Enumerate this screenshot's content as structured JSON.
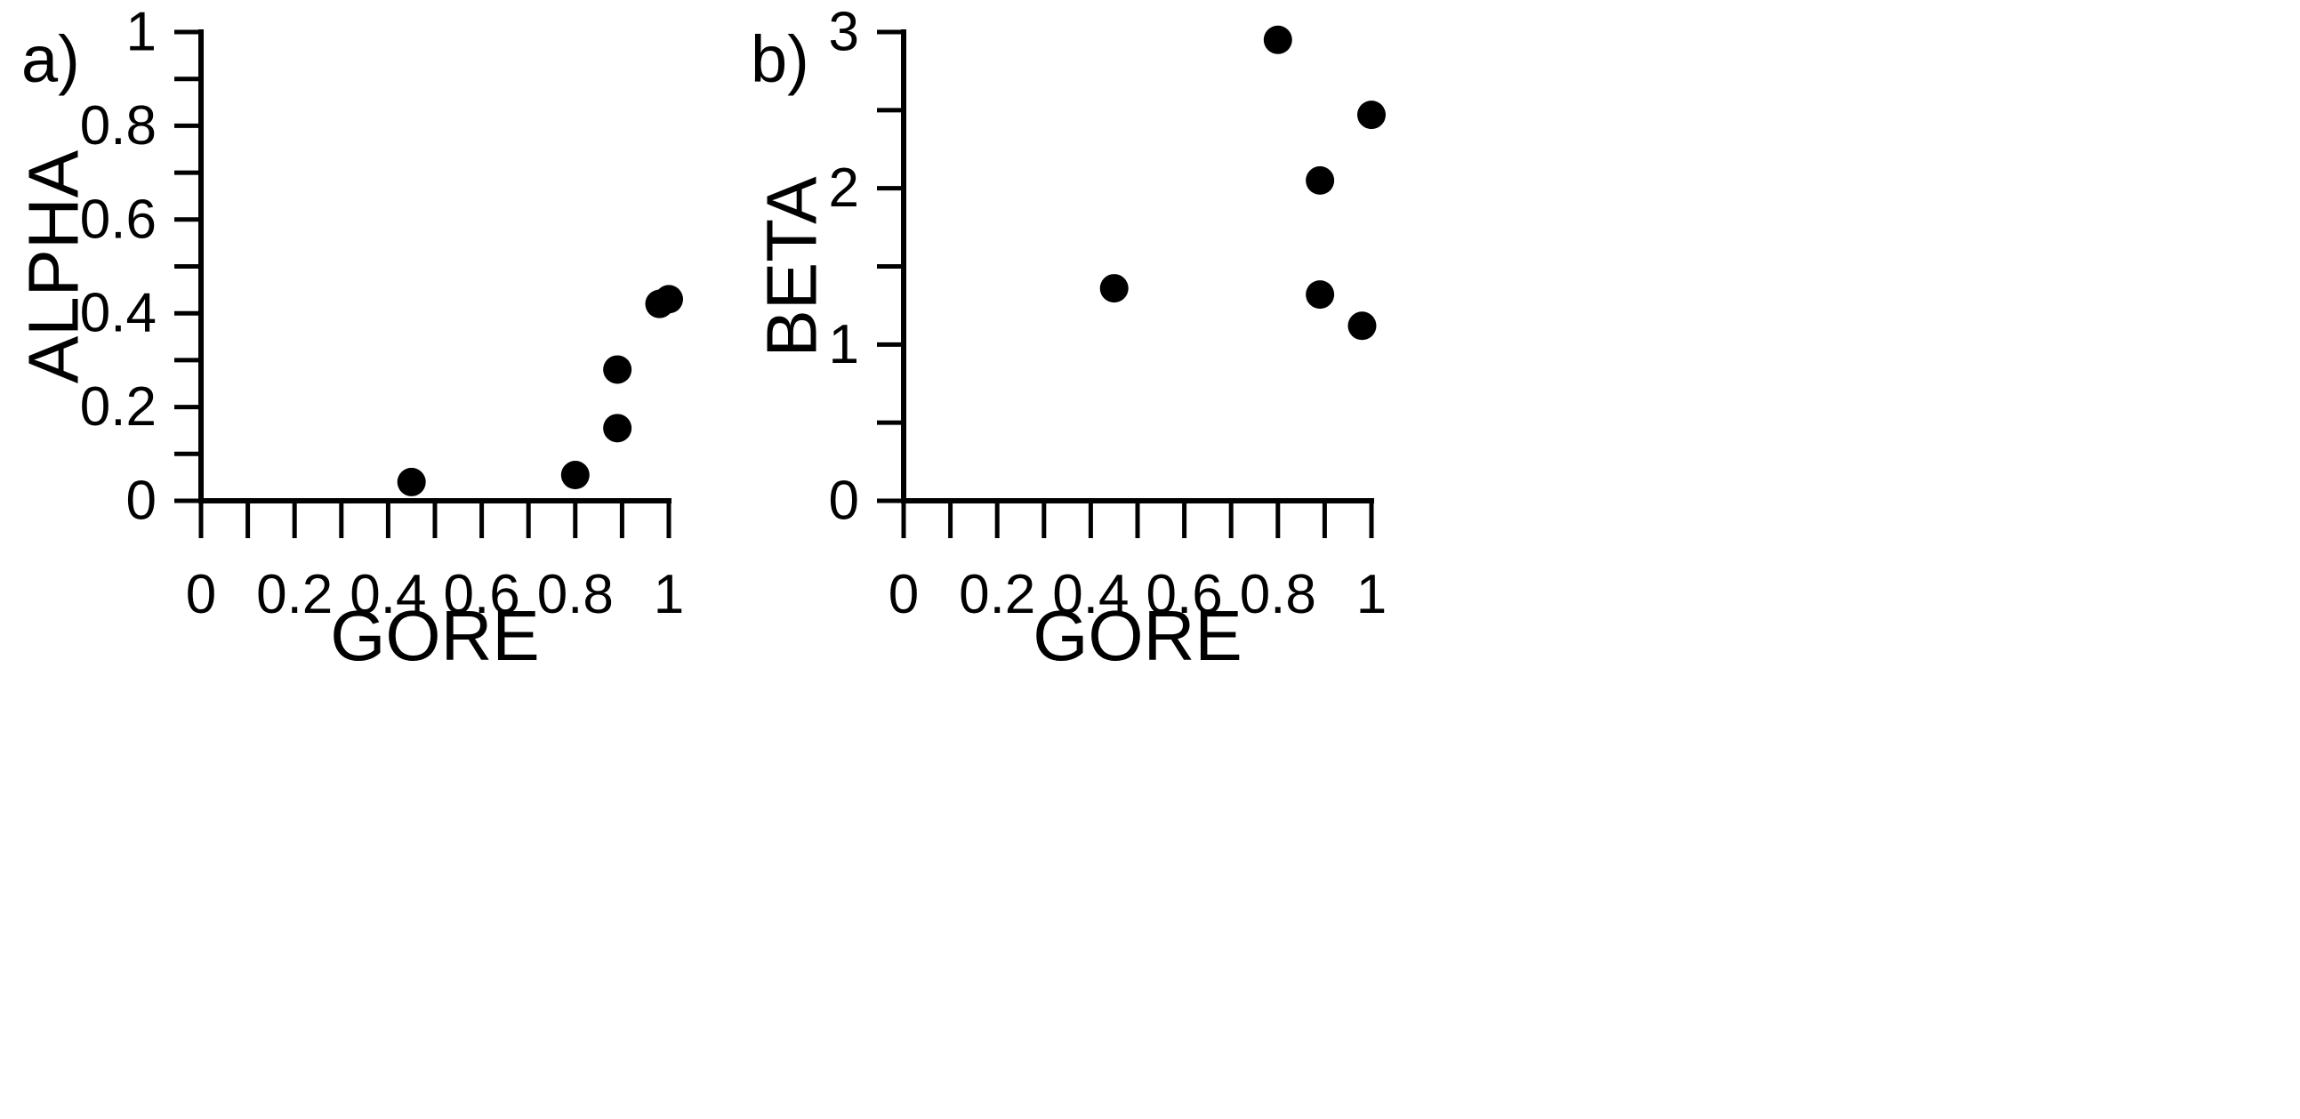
{
  "colors": {
    "axis": "#000000",
    "marker": "#000000",
    "background": "#ffffff"
  },
  "chart_data": [
    {
      "type": "scatter",
      "panel_label": "a)",
      "xlabel": "GORE",
      "ylabel": "ALPHA",
      "xlim": [
        0,
        1
      ],
      "ylim": [
        0,
        1
      ],
      "x_ticks": [
        "0",
        "0.2",
        "0.4",
        "0.6",
        "0.8",
        "1"
      ],
      "y_ticks": [
        "0",
        "0.2",
        "0.4",
        "0.6",
        "0.8",
        "1"
      ],
      "grid": false,
      "points": [
        {
          "x": 0.45,
          "y": 0.04
        },
        {
          "x": 0.8,
          "y": 0.055
        },
        {
          "x": 0.89,
          "y": 0.155
        },
        {
          "x": 0.89,
          "y": 0.28
        },
        {
          "x": 0.98,
          "y": 0.42
        },
        {
          "x": 1.0,
          "y": 0.43
        }
      ]
    },
    {
      "type": "scatter",
      "panel_label": "b)",
      "xlabel": "GORE",
      "ylabel": "BETA",
      "xlim": [
        0,
        1
      ],
      "ylim": [
        0,
        3
      ],
      "x_ticks": [
        "0",
        "0.2",
        "0.4",
        "0.6",
        "0.8",
        "1"
      ],
      "y_ticks": [
        "0",
        "1",
        "2",
        "3"
      ],
      "grid": false,
      "points": [
        {
          "x": 0.45,
          "y": 1.36
        },
        {
          "x": 0.8,
          "y": 2.95
        },
        {
          "x": 0.89,
          "y": 2.05
        },
        {
          "x": 0.89,
          "y": 1.32
        },
        {
          "x": 0.98,
          "y": 1.12
        },
        {
          "x": 1.0,
          "y": 2.47
        }
      ]
    }
  ]
}
